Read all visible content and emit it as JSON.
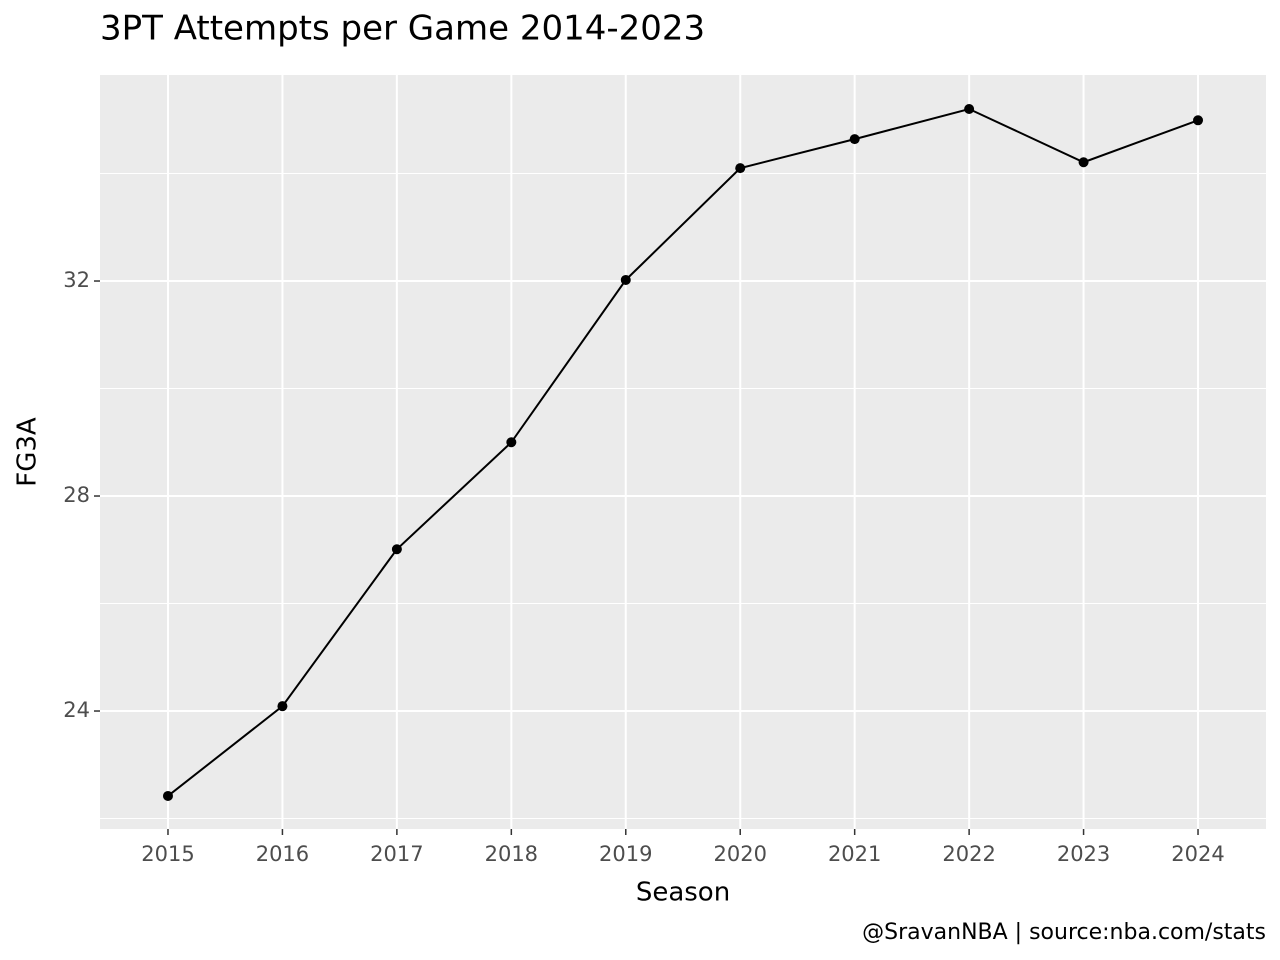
{
  "chart_data": {
    "type": "line",
    "title": "3PT Attempts per Game 2014-2023",
    "x_label": "Season",
    "y_label": "FG3A",
    "caption": "@SravanNBA | source:nba.com/stats",
    "x": [
      2015,
      2016,
      2017,
      2018,
      2019,
      2020,
      2021,
      2022,
      2023,
      2024
    ],
    "series": [
      {
        "name": "FG3A",
        "color": "#000000",
        "values": [
          22.42,
          24.09,
          27.01,
          29.0,
          32.02,
          34.1,
          34.64,
          35.2,
          34.21,
          34.99
        ]
      }
    ],
    "xlim": [
      2014.406,
      2024.594
    ],
    "ylim": [
      21.805,
      35.833
    ],
    "xticks": [
      2015,
      2016,
      2017,
      2018,
      2019,
      2020,
      2021,
      2022,
      2023,
      2024
    ],
    "yticks": [
      24,
      28,
      32
    ],
    "grid": true,
    "panel_color": "#ebebeb"
  }
}
